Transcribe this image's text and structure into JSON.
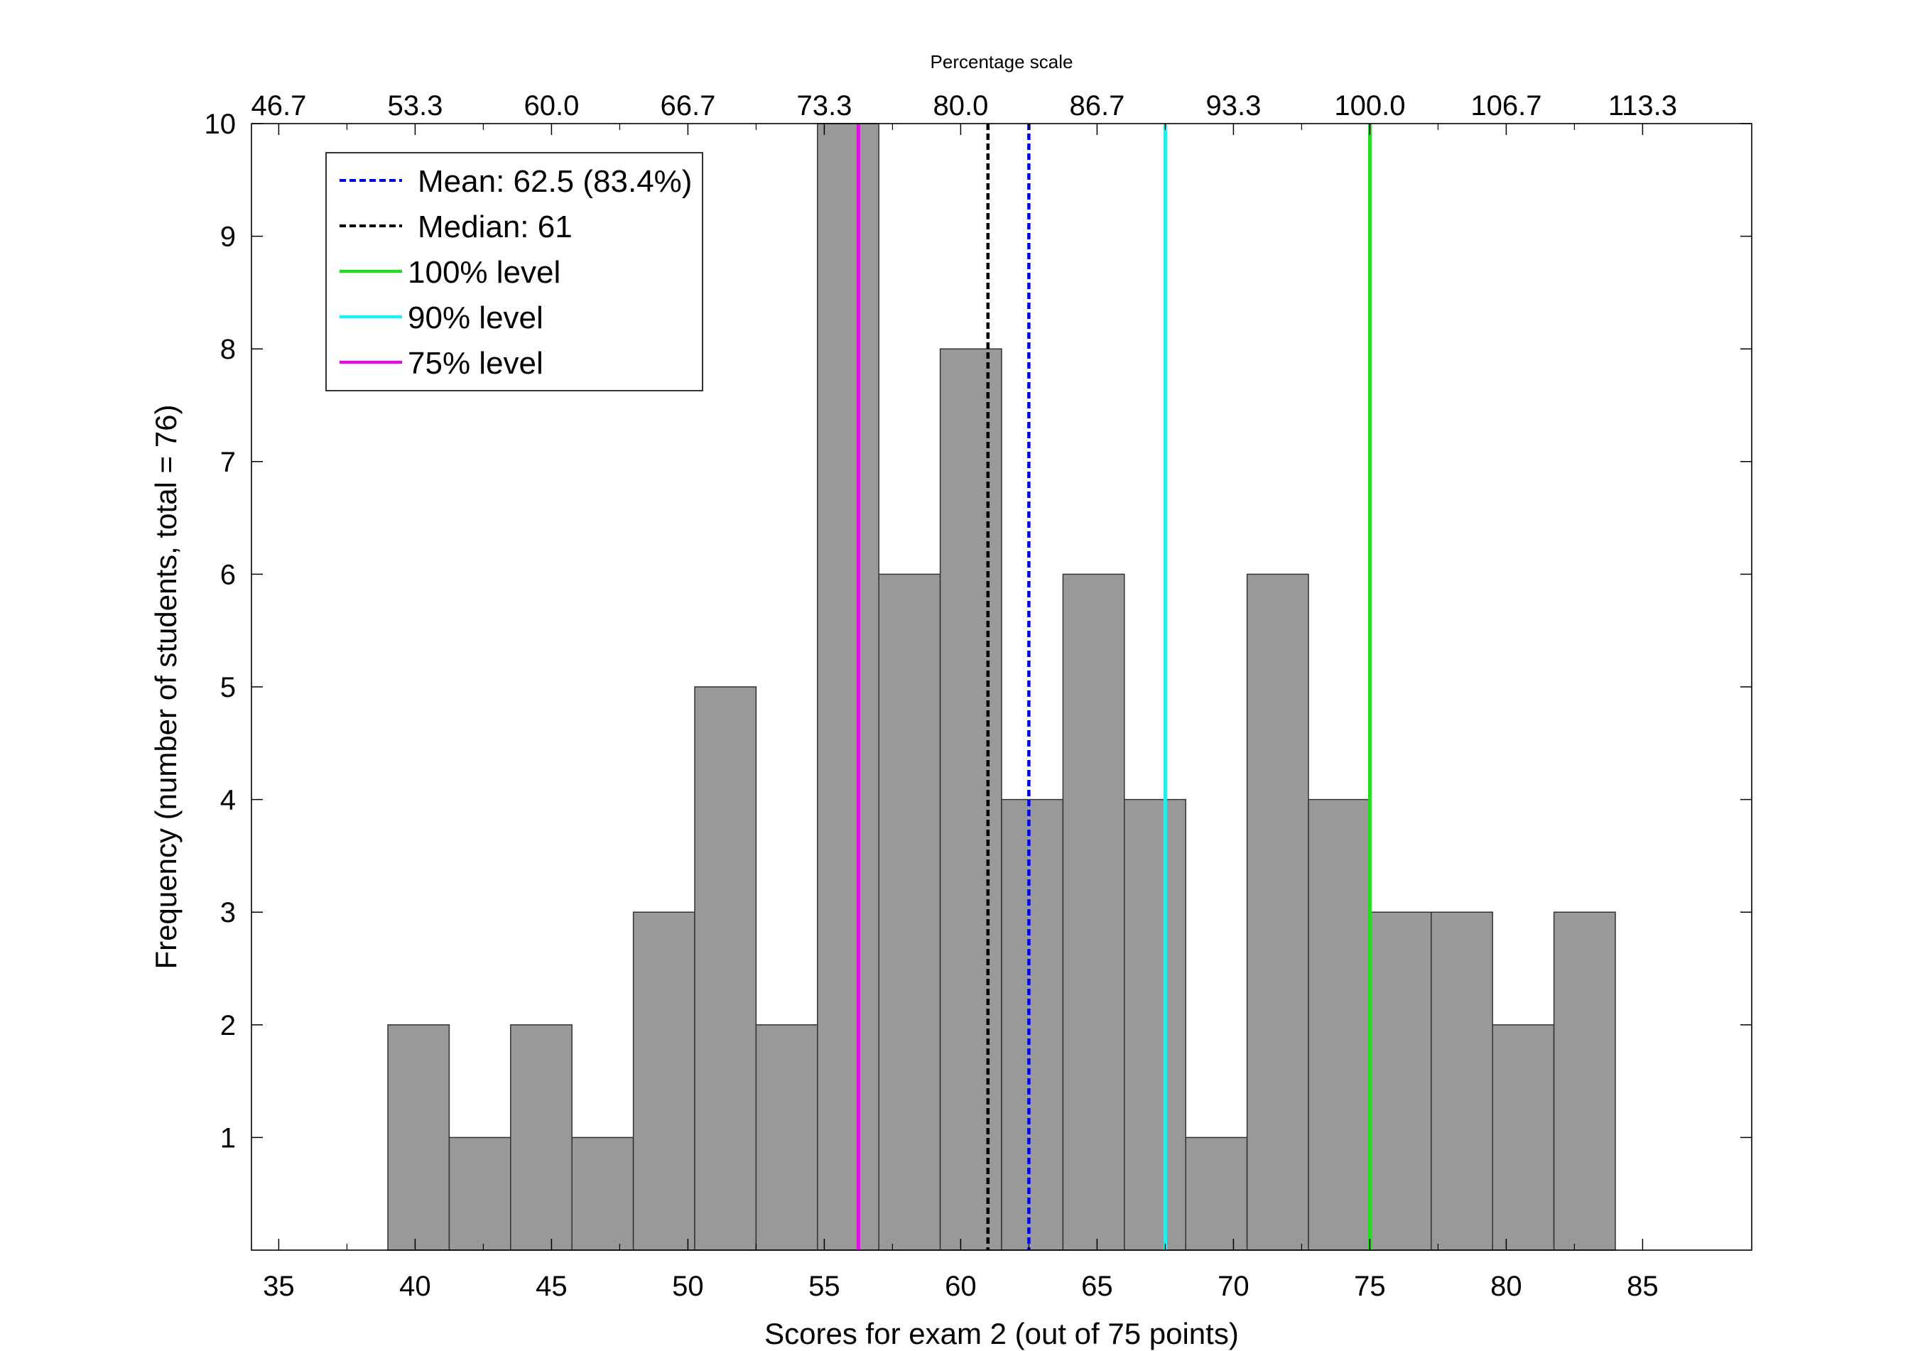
{
  "chart_data": {
    "type": "bar",
    "subtype": "histogram",
    "xlabel": "Scores for exam 2 (out of 75 points)",
    "ylabel": "Frequency (number of students, total = 76)",
    "top_axis_title": "Percentage scale",
    "xlim": [
      34,
      89
    ],
    "ylim": [
      0,
      10
    ],
    "x_ticks": [
      35,
      40,
      45,
      50,
      55,
      60,
      65,
      70,
      75,
      80,
      85
    ],
    "x_tick_labels": [
      "35",
      "40",
      "45",
      "50",
      "55",
      "60",
      "65",
      "70",
      "75",
      "80",
      "85"
    ],
    "y_ticks": [
      1,
      2,
      3,
      4,
      5,
      6,
      7,
      8,
      9,
      10
    ],
    "y_tick_labels": [
      "1",
      "2",
      "3",
      "4",
      "5",
      "6",
      "7",
      "8",
      "9",
      "10"
    ],
    "top_ticks": [
      35,
      40,
      45,
      50,
      55,
      60,
      65,
      70,
      75,
      80,
      85
    ],
    "top_tick_labels": [
      "46.7",
      "53.3",
      "60.0",
      "66.7",
      "73.3",
      "80.0",
      "86.7",
      "93.3",
      "100.0",
      "106.7",
      "113.3"
    ],
    "bin_edges": [
      39,
      41.25,
      43.5,
      45.75,
      48,
      50.25,
      52.5,
      54.75,
      57,
      59.25,
      61.5,
      63.75,
      66,
      68.25,
      70.5,
      72.75,
      75,
      77.25,
      79.5,
      81.75,
      84
    ],
    "values": [
      2,
      1,
      2,
      1,
      3,
      5,
      2,
      10,
      6,
      8,
      4,
      6,
      4,
      1,
      6,
      4,
      3,
      3,
      2,
      3
    ],
    "bar_color": "#999999",
    "vlines": [
      {
        "label": "Mean: 62.5 (83.4%)",
        "x": 62.5,
        "color": "#0000dd",
        "style": "dashed"
      },
      {
        "label": "Median: 61",
        "x": 61,
        "color": "#000000",
        "style": "dashed"
      },
      {
        "label": "100% level",
        "x": 75,
        "color": "#22dd22",
        "style": "solid"
      },
      {
        "label": "90% level",
        "x": 67.5,
        "color": "#22eeee",
        "style": "solid"
      },
      {
        "label": "75% level",
        "x": 56.25,
        "color": "#dd11dd",
        "style": "solid"
      }
    ],
    "legend_position": "top-left",
    "grid": false
  }
}
